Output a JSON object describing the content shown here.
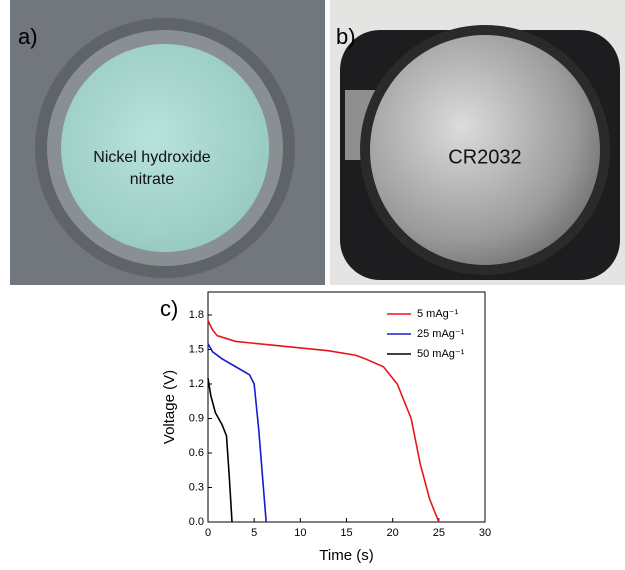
{
  "panels": [
    {
      "label": "a)",
      "caption": [
        "Nickel hydroxide",
        "nitrate"
      ]
    },
    {
      "label": "b)",
      "caption": [
        "CR2032"
      ]
    }
  ],
  "chart_data": {
    "type": "line",
    "panel_label": "c)",
    "x_label": "Time (s)",
    "y_label": "Voltage (V)",
    "xlim": [
      0,
      30
    ],
    "xticks": [
      0,
      5,
      10,
      15,
      20,
      25,
      30
    ],
    "ylim": [
      0,
      2.0
    ],
    "yticks": [
      {
        "value": 0,
        "label": "0.0"
      },
      0.3,
      0.6,
      0.9,
      1.2,
      1.5,
      1.8
    ],
    "legend": "upper right",
    "series": [
      {
        "name": "5 mAg⁻¹",
        "color": "#e8141c",
        "x": [
          0,
          0.5,
          1,
          3,
          8,
          13,
          16,
          17,
          19,
          20.5,
          22,
          23,
          24,
          25
        ],
        "values": [
          1.75,
          1.67,
          1.62,
          1.57,
          1.53,
          1.49,
          1.45,
          1.42,
          1.35,
          1.2,
          0.9,
          0.5,
          0.2,
          0
        ]
      },
      {
        "name": "25 mAg⁻¹",
        "color": "#1a1ad0",
        "x": [
          0,
          0.5,
          1.5,
          3,
          4.5,
          5,
          5.5,
          6,
          6.3
        ],
        "values": [
          1.55,
          1.48,
          1.42,
          1.35,
          1.28,
          1.2,
          0.8,
          0.3,
          0
        ]
      },
      {
        "name": "50 mAg⁻¹",
        "color": "#000000",
        "x": [
          0,
          0.3,
          0.8,
          1.5,
          2,
          2.3,
          2.6
        ],
        "values": [
          1.25,
          1.1,
          0.95,
          0.85,
          0.75,
          0.4,
          0
        ]
      }
    ]
  }
}
